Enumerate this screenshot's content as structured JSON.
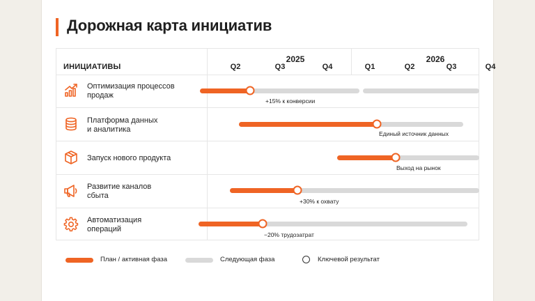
{
  "title": "Дорожная карта инициатив",
  "header": {
    "column_label": "ИНИЦИАТИВЫ",
    "years": [
      "2025",
      "2026"
    ],
    "quarters_2025": [
      "Q2",
      "Q3",
      "Q4"
    ],
    "quarters_2026": [
      "Q1",
      "Q2",
      "Q3",
      "Q4"
    ]
  },
  "rows": [
    {
      "label_line1": "Оптимизация процессов",
      "label_line2": "продаж",
      "icon": "growth-chart-icon",
      "result": "+15% к конверсии",
      "plan_start": "Q2 2025",
      "milestone": "Q3 2025",
      "next_end": "Q3 2026"
    },
    {
      "label_line1": "Платформа данных",
      "label_line2": "и аналитика",
      "icon": "database-icon",
      "result": "Единый источник данных",
      "plan_start": "Q3 2025",
      "milestone": "Q2 2026",
      "next_end": "Q3 2026"
    },
    {
      "label_line1": "Запуск нового продукта",
      "label_line2": "",
      "icon": "box-icon",
      "result": "Выход на рынок",
      "plan_start": "Q1 2026",
      "milestone": "Q2 2026",
      "next_end": "Q4 2026"
    },
    {
      "label_line1": "Развитие каналов",
      "label_line2": "сбыта",
      "icon": "megaphone-icon",
      "result": "+30% к охвату",
      "plan_start": "Q3 2025",
      "milestone": "Q4 2025",
      "next_end": "Q4 2026"
    },
    {
      "label_line1": "Автоматизация",
      "label_line2": "операций",
      "icon": "gear-icon",
      "result": "−20% трудозатрат",
      "plan_start": "Q2 2025",
      "milestone": "Q3 2025",
      "next_end": "Q3 2026"
    }
  ],
  "legend": {
    "plan": "План / активная фаза",
    "next": "Следующая фаза",
    "result": "Ключевой результат"
  },
  "colors": {
    "accent": "#ef6424",
    "next_phase": "#d9d9d9",
    "grid": "#e6e6e6"
  }
}
